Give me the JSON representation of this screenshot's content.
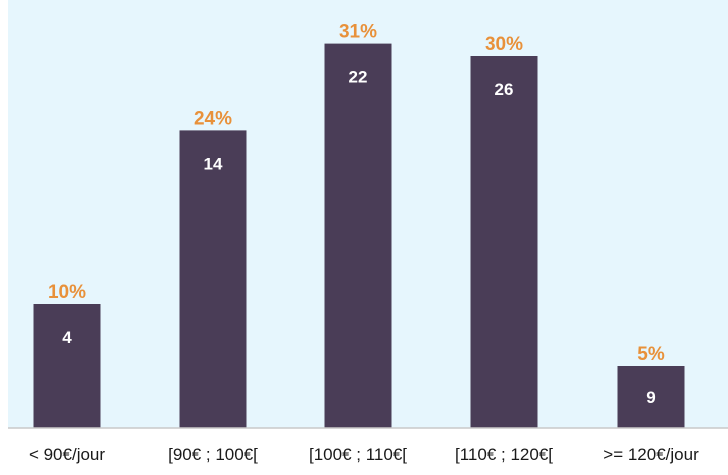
{
  "colors": {
    "background": "#e6f6fd",
    "bar": "#4a3d57",
    "percent_label": "#e8913a",
    "value_label": "#ffffff",
    "axis_line": "#c9c9c9",
    "category_label": "#1a1a1a"
  },
  "chart_data": {
    "type": "bar",
    "title": "",
    "xlabel": "",
    "ylabel": "",
    "categories": [
      "< 90€/jour",
      "[90€ ; 100€[",
      "[100€ ; 110€[",
      "[110€ ; 120€[",
      ">= 120€/jour"
    ],
    "values": [
      4,
      14,
      22,
      26,
      9
    ],
    "percent_labels": [
      "10%",
      "24%",
      "31%",
      "30%",
      "5%"
    ],
    "bar_heights_percent": [
      10,
      24,
      31,
      30,
      5
    ],
    "grid": false,
    "legend": "none"
  }
}
